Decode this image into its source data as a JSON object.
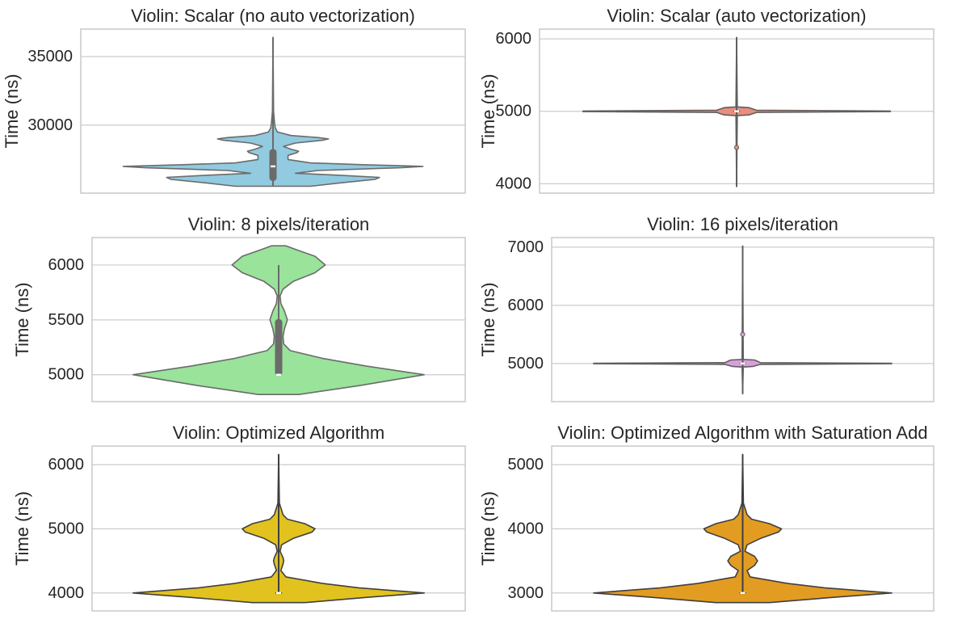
{
  "chart_data": [
    {
      "type": "violin",
      "title": "Violin: Scalar (no auto vectorization)",
      "ylabel": "Time (ns)",
      "yticks": [
        30000,
        35000
      ],
      "ytick_labels": [
        "30000",
        "35000"
      ],
      "ylim": [
        25050,
        37000
      ],
      "grid": true,
      "color": "#92CAE0",
      "edge_color": "#6b6b6b",
      "density": [
        [
          25550,
          0.25
        ],
        [
          25800,
          0.45
        ],
        [
          26050,
          0.68
        ],
        [
          26200,
          0.71
        ],
        [
          26350,
          0.45
        ],
        [
          26500,
          0.15
        ],
        [
          26700,
          0.3
        ],
        [
          26900,
          0.85
        ],
        [
          27000,
          1.0
        ],
        [
          27120,
          0.6
        ],
        [
          27250,
          0.25
        ],
        [
          27500,
          0.1
        ],
        [
          27800,
          0.1
        ],
        [
          28000,
          0.16
        ],
        [
          28100,
          0.17
        ],
        [
          28250,
          0.12
        ],
        [
          28450,
          0.07
        ],
        [
          28700,
          0.15
        ],
        [
          28900,
          0.33
        ],
        [
          29000,
          0.37
        ],
        [
          29100,
          0.3
        ],
        [
          29250,
          0.12
        ],
        [
          29500,
          0.03
        ],
        [
          29800,
          0.015
        ],
        [
          30200,
          0.01
        ],
        [
          31000,
          0.004
        ],
        [
          36400,
          0.0
        ]
      ],
      "box": {
        "whisker_low": 25550,
        "q1": 26000,
        "median": 27000,
        "q3": 28200,
        "whisker_high": 36400
      },
      "outliers": []
    },
    {
      "type": "violin",
      "title": "Violin: Scalar (auto vectorization)",
      "ylabel": "Time (ns)",
      "yticks": [
        4000,
        5000,
        6000
      ],
      "ytick_labels": [
        "4000",
        "5000",
        "6000"
      ],
      "ylim": [
        3870,
        6135
      ],
      "grid": true,
      "color": "#E98D7E",
      "edge_color": "#5e5e5e",
      "density": [
        [
          3960,
          0.0
        ],
        [
          4940,
          0.004
        ],
        [
          4950,
          0.08
        ],
        [
          4985,
          0.13
        ],
        [
          4996,
          1.0
        ],
        [
          5004,
          1.0
        ],
        [
          5015,
          0.13
        ],
        [
          5050,
          0.08
        ],
        [
          5060,
          0.004
        ],
        [
          6020,
          0.0
        ]
      ],
      "box": {
        "whisker_low": 3960,
        "q1": 5000,
        "median": 5000,
        "q3": 5000,
        "whisker_high": 6020
      },
      "outliers": [
        4500
      ]
    },
    {
      "type": "violin",
      "title": "Violin: 8 pixels/iteration",
      "ylabel": "Time (ns)",
      "yticks": [
        5000,
        5500,
        6000
      ],
      "ytick_labels": [
        "5000",
        "5500",
        "6000"
      ],
      "ylim": [
        4755,
        6250
      ],
      "grid": true,
      "color": "#99E39A",
      "edge_color": "#6b6b6b",
      "density": [
        [
          4820,
          0.14
        ],
        [
          4900,
          0.55
        ],
        [
          5000,
          1.0
        ],
        [
          5080,
          0.6
        ],
        [
          5150,
          0.3
        ],
        [
          5220,
          0.08
        ],
        [
          5280,
          0.035
        ],
        [
          5350,
          0.03
        ],
        [
          5420,
          0.04
        ],
        [
          5500,
          0.06
        ],
        [
          5580,
          0.04
        ],
        [
          5650,
          0.015
        ],
        [
          5720,
          0.01
        ],
        [
          5780,
          0.03
        ],
        [
          5850,
          0.1
        ],
        [
          5930,
          0.25
        ],
        [
          6000,
          0.32
        ],
        [
          6080,
          0.25
        ],
        [
          6140,
          0.12
        ],
        [
          6175,
          0.05
        ]
      ],
      "box": {
        "whisker_low": 5000,
        "q1": 5000,
        "median": 5000,
        "q3": 5500,
        "whisker_high": 6000
      },
      "outliers": []
    },
    {
      "type": "violin",
      "title": "Violin: 16 pixels/iteration",
      "ylabel": "Time (ns)",
      "yticks": [
        5000,
        6000,
        7000
      ],
      "ytick_labels": [
        "5000",
        "6000",
        "7000"
      ],
      "ylim": [
        4345,
        7165
      ],
      "grid": true,
      "color": "#DA9FDA",
      "edge_color": "#5e5e5e",
      "density": [
        [
          4480,
          0.0
        ],
        [
          4940,
          0.004
        ],
        [
          4950,
          0.07
        ],
        [
          4985,
          0.12
        ],
        [
          4996,
          1.0
        ],
        [
          5004,
          1.0
        ],
        [
          5015,
          0.12
        ],
        [
          5060,
          0.08
        ],
        [
          5070,
          0.004
        ],
        [
          7020,
          0.0
        ]
      ],
      "box": {
        "whisker_low": 4480,
        "q1": 5000,
        "median": 5000,
        "q3": 5000,
        "whisker_high": 7020
      },
      "outliers": [
        5500
      ]
    },
    {
      "type": "violin",
      "title": "Violin: Optimized Algorithm",
      "ylabel": "Time (ns)",
      "yticks": [
        4000,
        5000,
        6000
      ],
      "ytick_labels": [
        "4000",
        "5000",
        "6000"
      ],
      "ylim": [
        3720,
        6290
      ],
      "grid": true,
      "color": "#E2C21E",
      "edge_color": "#3f3f3f",
      "density": [
        [
          3850,
          0.18
        ],
        [
          3930,
          0.6
        ],
        [
          4000,
          1.0
        ],
        [
          4080,
          0.55
        ],
        [
          4150,
          0.3
        ],
        [
          4250,
          0.05
        ],
        [
          4350,
          0.015
        ],
        [
          4450,
          0.03
        ],
        [
          4500,
          0.035
        ],
        [
          4550,
          0.03
        ],
        [
          4650,
          0.01
        ],
        [
          4750,
          0.02
        ],
        [
          4850,
          0.1
        ],
        [
          4950,
          0.23
        ],
        [
          5000,
          0.25
        ],
        [
          5080,
          0.18
        ],
        [
          5150,
          0.06
        ],
        [
          5220,
          0.03
        ],
        [
          5400,
          0.005
        ],
        [
          6160,
          0.0
        ]
      ],
      "box": {
        "whisker_low": 4000,
        "q1": 4000,
        "median": 4000,
        "q3": 4000,
        "whisker_high": 6160
      },
      "outliers": []
    },
    {
      "type": "violin",
      "title": "Violin: Optimized Algorithm with Saturation Add",
      "ylabel": "Time (ns)",
      "yticks": [
        3000,
        4000,
        5000
      ],
      "ytick_labels": [
        "3000",
        "4000",
        "5000"
      ],
      "ylim": [
        2720,
        5290
      ],
      "grid": true,
      "color": "#E39C22",
      "edge_color": "#3f3f3f",
      "density": [
        [
          2850,
          0.18
        ],
        [
          2930,
          0.6
        ],
        [
          3000,
          1.0
        ],
        [
          3080,
          0.55
        ],
        [
          3150,
          0.3
        ],
        [
          3250,
          0.05
        ],
        [
          3350,
          0.03
        ],
        [
          3430,
          0.08
        ],
        [
          3500,
          0.1
        ],
        [
          3570,
          0.08
        ],
        [
          3650,
          0.015
        ],
        [
          3750,
          0.03
        ],
        [
          3850,
          0.12
        ],
        [
          3950,
          0.24
        ],
        [
          4000,
          0.26
        ],
        [
          4080,
          0.18
        ],
        [
          4150,
          0.06
        ],
        [
          4220,
          0.03
        ],
        [
          4400,
          0.005
        ],
        [
          5160,
          0.0
        ]
      ],
      "box": {
        "whisker_low": 3000,
        "q1": 3000,
        "median": 3000,
        "q3": 3000,
        "whisker_high": 5160
      },
      "outliers": []
    }
  ]
}
